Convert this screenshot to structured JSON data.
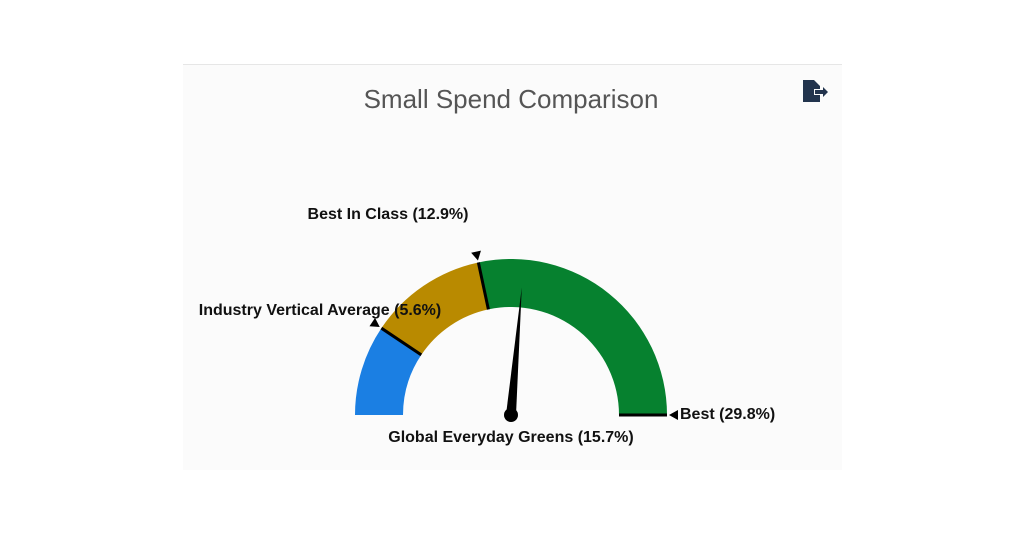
{
  "chart_data": {
    "type": "gauge",
    "title": "Small Spend Comparison",
    "ylim": [
      0,
      29.8
    ],
    "markers": [
      {
        "value": 5.6,
        "label": "Industry Vertical Average (5.6%)"
      },
      {
        "value": 12.9,
        "label": "Best In Class (12.9%)"
      },
      {
        "value": 29.8,
        "label": "Best (29.8%)"
      }
    ],
    "colors": [
      "#1b7fe3",
      "#b98a00",
      "#06812f"
    ],
    "needle": {
      "value": 15.7,
      "label": "Global Everyday Greens (15.7%)"
    }
  }
}
